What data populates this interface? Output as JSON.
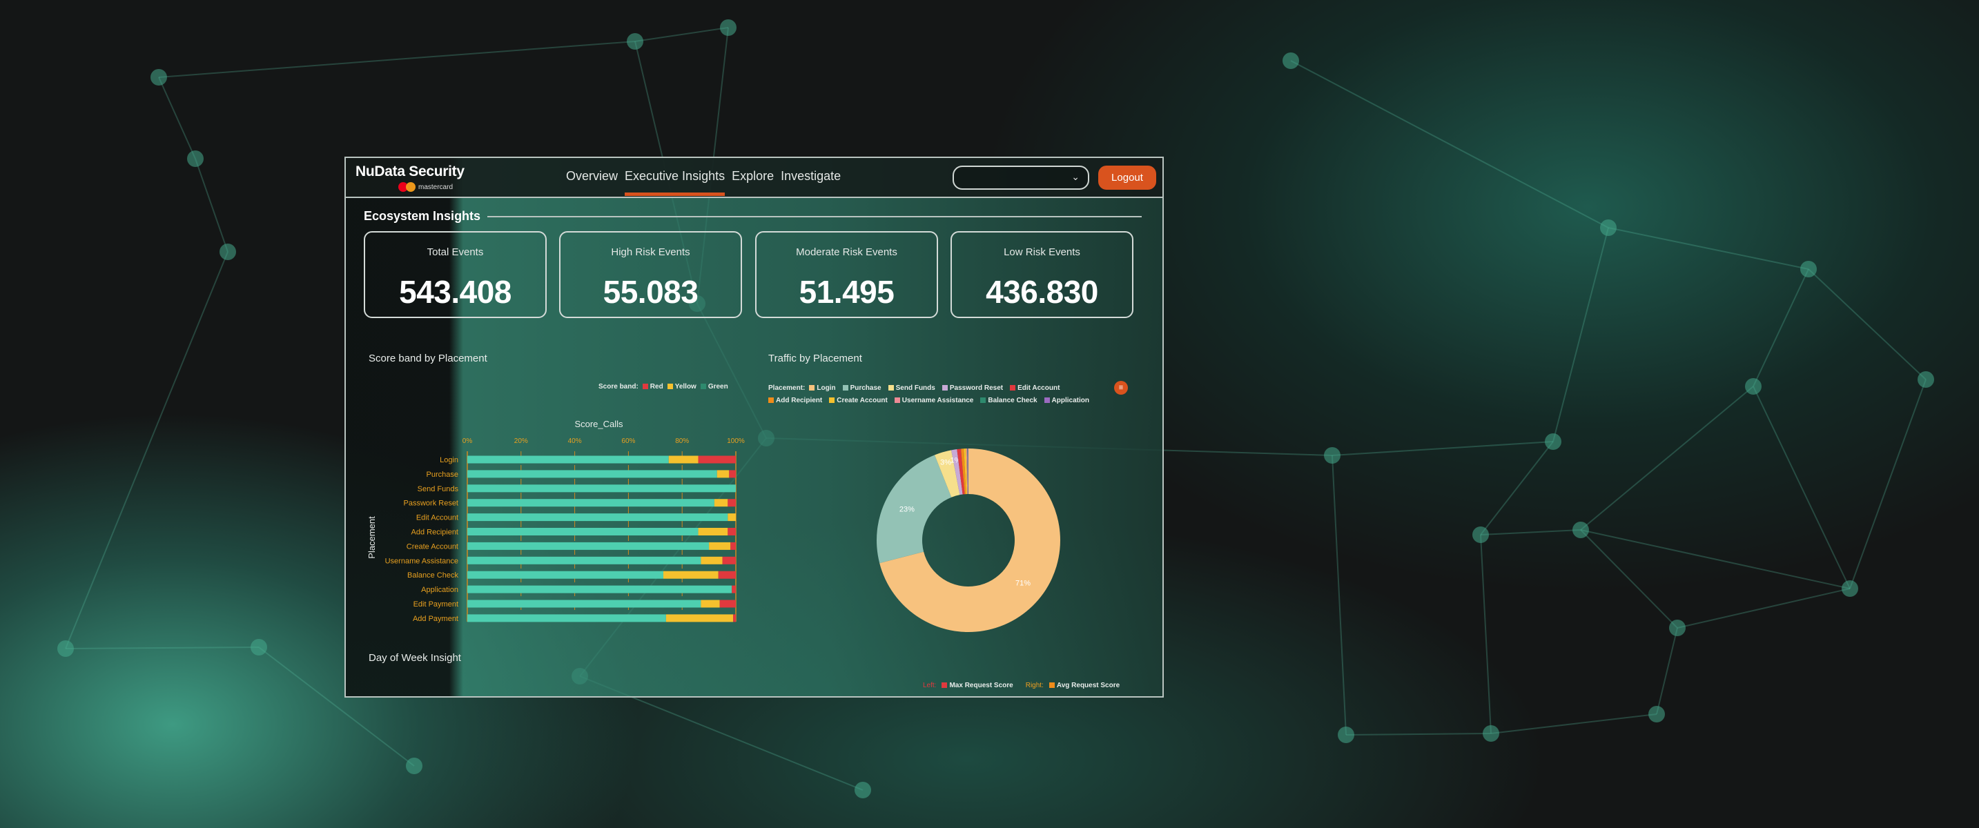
{
  "header": {
    "brand": "NuData Security",
    "sub_brand": "mastercard",
    "nav": [
      "Overview",
      "Executive Insights",
      "Explore",
      "Investigate"
    ],
    "active_nav": "Executive Insights",
    "dropdown_value": "",
    "logout": "Logout"
  },
  "section_title": "Ecosystem Insights",
  "kpis": [
    {
      "label": "Total Events",
      "value": "543.408"
    },
    {
      "label": "High Risk Events",
      "value": "55.083"
    },
    {
      "label": "Moderate Risk Events",
      "value": "51.495"
    },
    {
      "label": "Low Risk Events",
      "value": "436.830"
    }
  ],
  "colors": {
    "accent": "#d9531e",
    "green": "#4ecfb0",
    "yellow": "#f5c12e",
    "red": "#e0393e",
    "axis": "#e8a020"
  },
  "chart_data": [
    {
      "type": "bar",
      "orientation": "horizontal",
      "stacked": "percent",
      "title": "Score band by Placement",
      "xlabel": "Score_Calls",
      "ylabel": "Placement",
      "legend_title": "Score band:",
      "legend_placement": "top-right",
      "xticks": [
        "0%",
        "20%",
        "40%",
        "60%",
        "80%",
        "100%"
      ],
      "xlim": [
        0,
        100
      ],
      "grid": true,
      "categories": [
        "Login",
        "Purchase",
        "Send Funds",
        "Passwork Reset",
        "Edit Account",
        "Add Recipient",
        "Create Account",
        "Username Assistance",
        "Balance Check",
        "Application",
        "Edit Payment",
        "Add Payment"
      ],
      "series": [
        {
          "name": "Green",
          "color": "#4ecfb0",
          "values": [
            75,
            93,
            100,
            92,
            97,
            86,
            90,
            87,
            73,
            98.5,
            87,
            74
          ]
        },
        {
          "name": "Yellow",
          "color": "#f5c12e",
          "values": [
            11,
            4.5,
            0,
            5,
            3,
            11,
            8,
            8,
            20.5,
            0,
            7,
            25
          ]
        },
        {
          "name": "Red",
          "color": "#e0393e",
          "values": [
            14,
            2.5,
            0,
            3,
            0,
            3,
            2,
            5,
            6.5,
            1.5,
            6,
            1
          ]
        }
      ],
      "legend_order": [
        "Red",
        "Yellow",
        "Green"
      ]
    },
    {
      "type": "pie",
      "donut": true,
      "title": "Traffic by Placement",
      "legend_title": "Placement:",
      "legend_placement": "top",
      "slices": [
        {
          "label": "Login",
          "value": 71,
          "color": "#f7c27e",
          "data_label": "71%"
        },
        {
          "label": "Purchase",
          "value": 23,
          "color": "#93c2b5",
          "data_label": "23%"
        },
        {
          "label": "Send Funds",
          "value": 3,
          "color": "#f6df8c",
          "data_label": "3%"
        },
        {
          "label": "Password Reset",
          "value": 1,
          "color": "#c7a9d6",
          "data_label": "1%"
        },
        {
          "label": "Edit Account",
          "value": 0.7,
          "color": "#e0393e",
          "data_label": ""
        },
        {
          "label": "Add Recipient",
          "value": 0.5,
          "color": "#f08c1a",
          "data_label": ""
        },
        {
          "label": "Create Account",
          "value": 0.4,
          "color": "#f5c12e",
          "data_label": ""
        },
        {
          "label": "Username Assistance",
          "value": 0.2,
          "color": "#ee8a95",
          "data_label": ""
        },
        {
          "label": "Balance Check",
          "value": 0.1,
          "color": "#2e8a6e",
          "data_label": ""
        },
        {
          "label": "Application",
          "value": 0.1,
          "color": "#9b6bc0",
          "data_label": ""
        }
      ]
    },
    {
      "type": "line",
      "title": "Day of Week Insight",
      "legend": [
        {
          "side": "Left:",
          "name": "Max Request Score",
          "color": "#e0393e"
        },
        {
          "side": "Right:",
          "name": "Avg Request Score",
          "color": "#f08c1a"
        }
      ],
      "legend_placement": "bottom-right"
    }
  ]
}
